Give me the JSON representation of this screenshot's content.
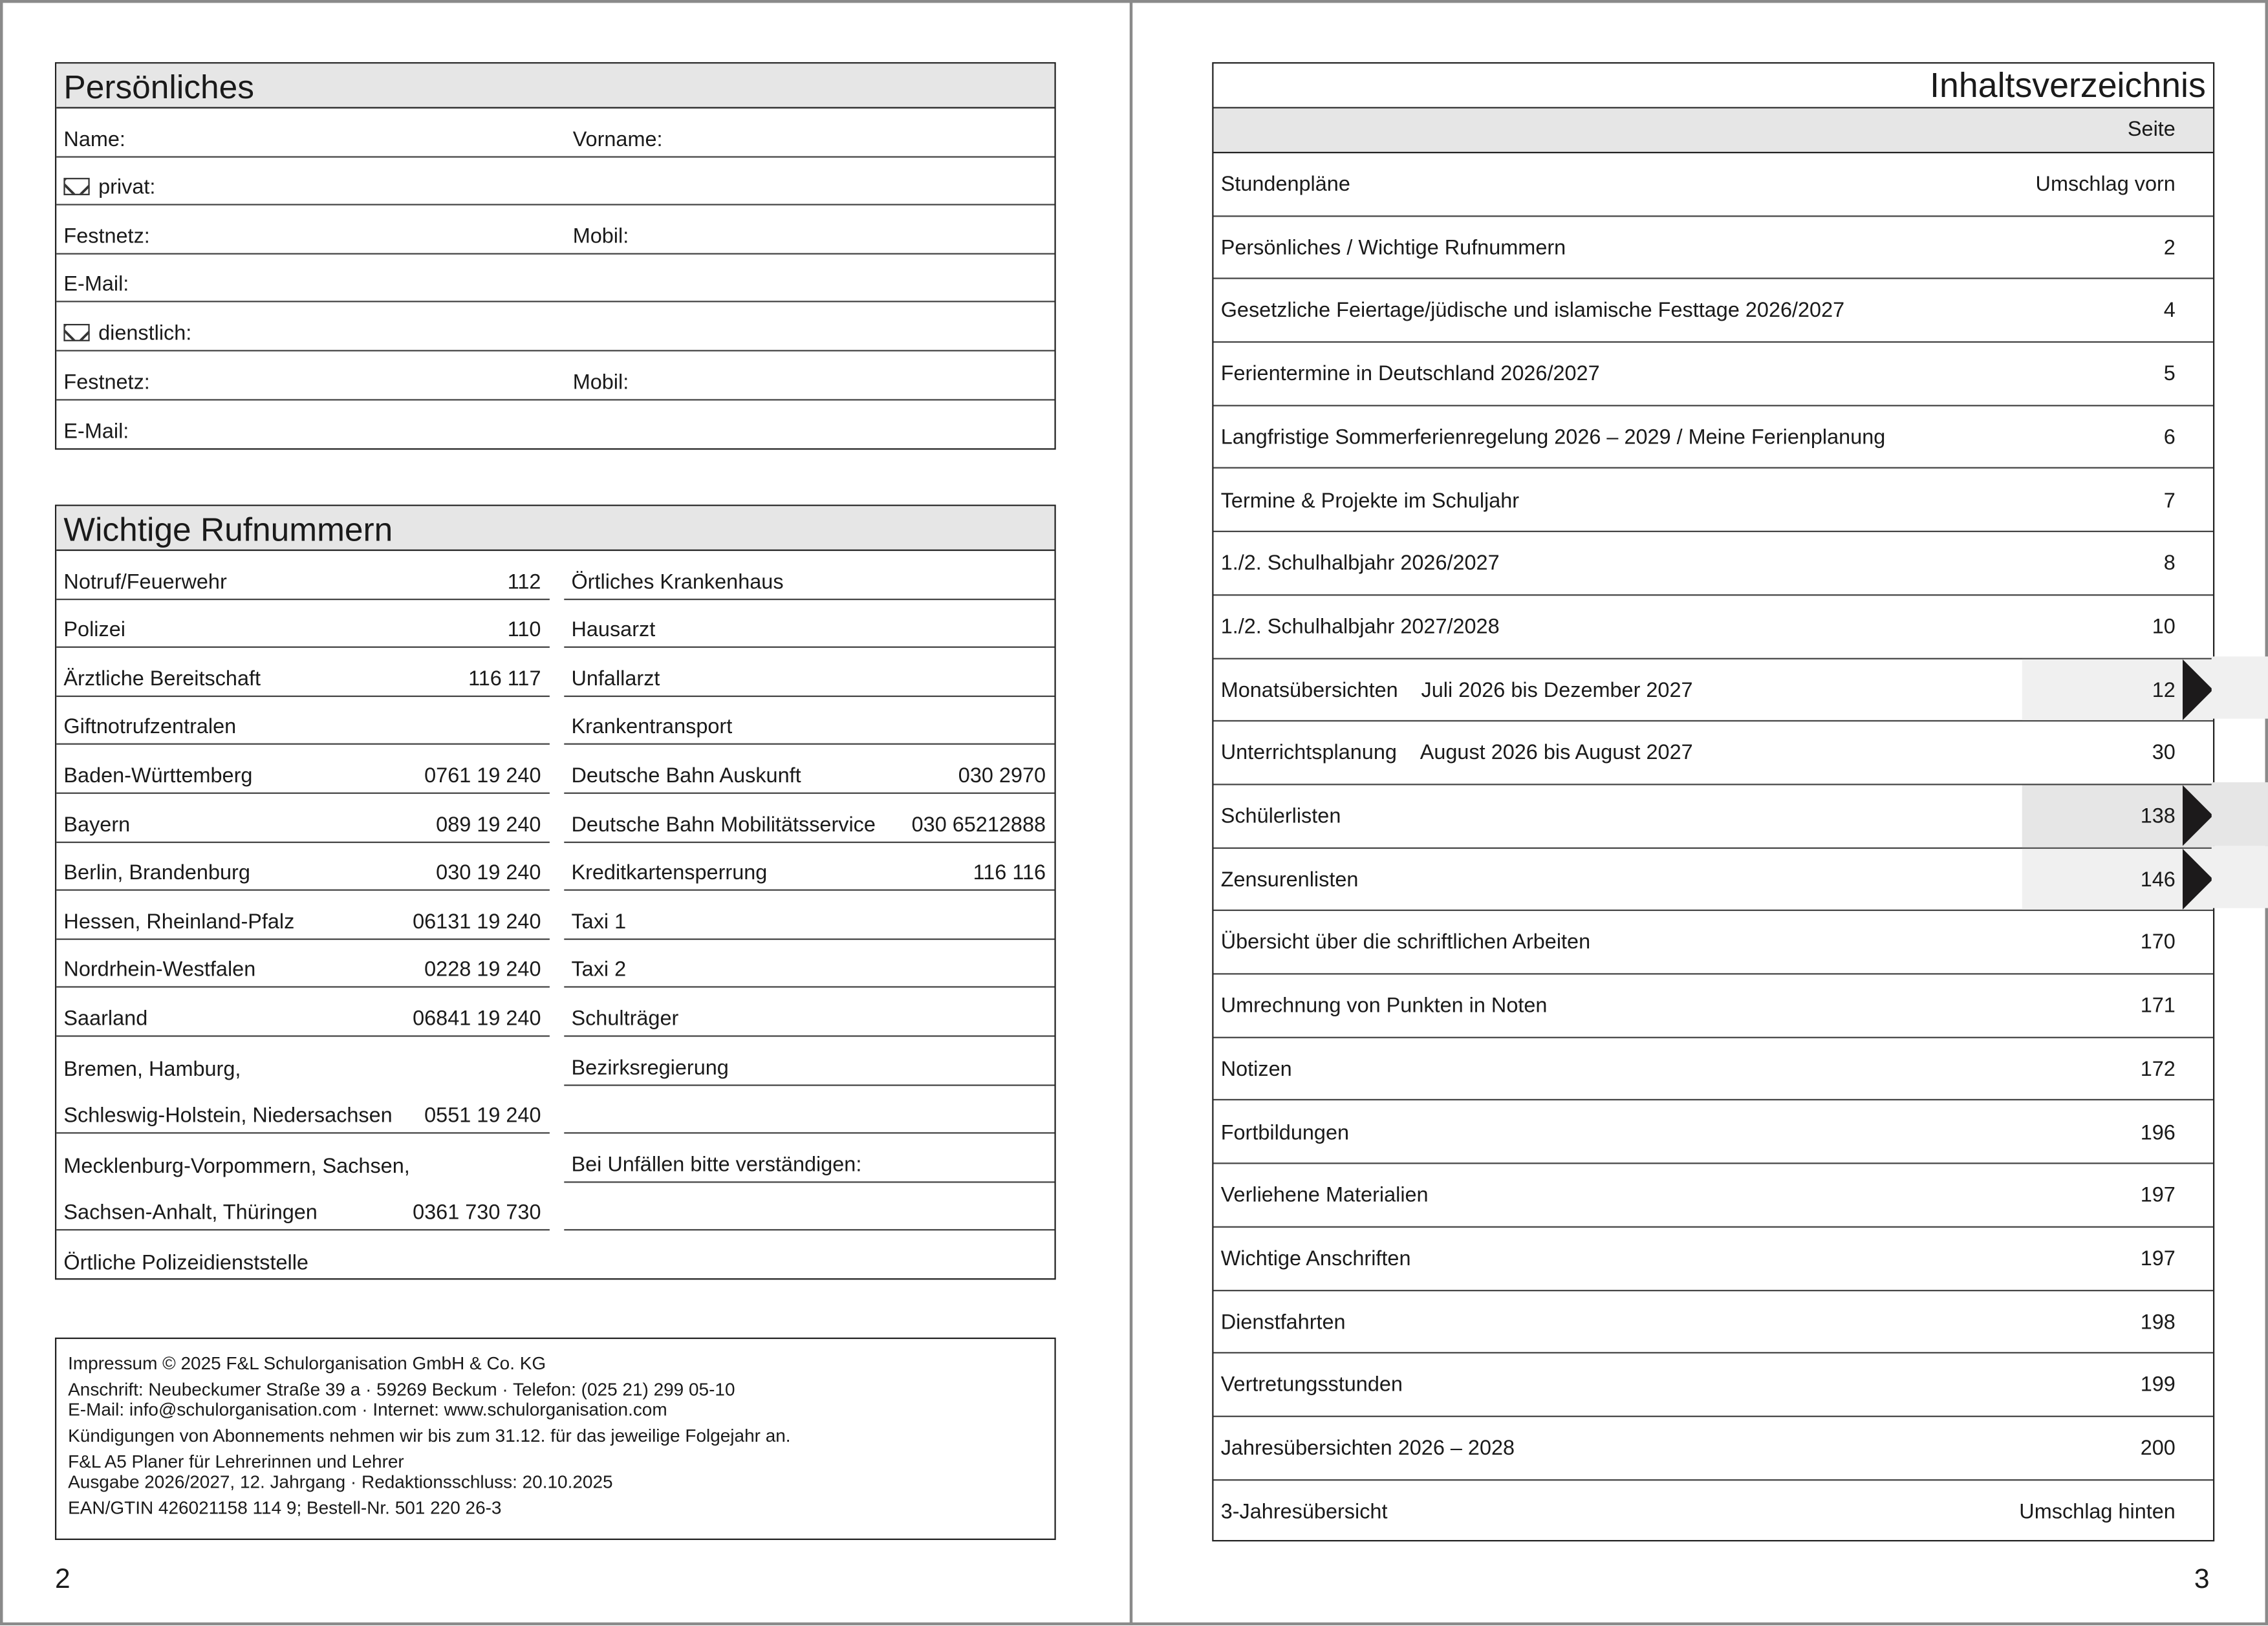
{
  "left_page": {
    "page_number": "2",
    "personal": {
      "title": "Persönliches",
      "rows": [
        {
          "left": "Name:",
          "right": "Vorname:"
        },
        {
          "left": "privat:",
          "icon": "envelope-icon"
        },
        {
          "left": "Festnetz:",
          "right": "Mobil:"
        },
        {
          "left": "E-Mail:"
        },
        {
          "left": "dienstlich:",
          "icon": "envelope-icon"
        },
        {
          "left": "Festnetz:",
          "right": "Mobil:"
        },
        {
          "left": "E-Mail:"
        }
      ]
    },
    "phones": {
      "title": "Wichtige Rufnummern",
      "left": [
        {
          "label": "Notruf/Feuerwehr",
          "number": "112"
        },
        {
          "label": "Polizei",
          "number": "110"
        },
        {
          "label": "Ärztliche Bereitschaft",
          "number": "116 117"
        },
        {
          "label": "Giftnotrufzentralen",
          "number": ""
        },
        {
          "label": "Baden-Württemberg",
          "number": "0761 19 240"
        },
        {
          "label": "Bayern",
          "number": "089 19 240"
        },
        {
          "label": "Berlin, Brandenburg",
          "number": "030 19 240"
        },
        {
          "label": "Hessen, Rheinland-Pfalz",
          "number": "06131 19 240"
        },
        {
          "label": "Nordrhein-Westfalen",
          "number": "0228 19 240"
        },
        {
          "label": "Saarland",
          "number": "06841 19 240"
        },
        {
          "label": "Bremen, Hamburg,",
          "number": ""
        },
        {
          "label": "Schleswig-Holstein, Niedersachsen",
          "number": "0551 19 240"
        },
        {
          "label": "Mecklenburg-Vorpommern, Sachsen,",
          "number": ""
        },
        {
          "label": "Sachsen-Anhalt, Thüringen",
          "number": "0361 730 730"
        },
        {
          "label": "Örtliche Polizeidienststelle",
          "number": ""
        }
      ],
      "right": [
        {
          "label": "Örtliches Krankenhaus",
          "number": ""
        },
        {
          "label": "Hausarzt",
          "number": ""
        },
        {
          "label": "Unfallarzt",
          "number": ""
        },
        {
          "label": "Krankentransport",
          "number": ""
        },
        {
          "label": "Deutsche Bahn Auskunft",
          "number": "030 2970"
        },
        {
          "label": "Deutsche Bahn Mobilitätsservice",
          "number": "030 65212888"
        },
        {
          "label": "Kreditkartensperrung",
          "number": "116 116"
        },
        {
          "label": "Taxi 1",
          "number": ""
        },
        {
          "label": "Taxi 2",
          "number": ""
        },
        {
          "label": "Schulträger",
          "number": ""
        },
        {
          "label": "Bezirksregierung",
          "number": ""
        },
        {
          "label": "",
          "number": ""
        },
        {
          "label": "Bei Unfällen bitte verständigen:",
          "number": ""
        },
        {
          "label": "",
          "number": ""
        },
        {
          "label": "",
          "number": ""
        }
      ]
    },
    "impressum": [
      "Impressum © 2025 F&L Schulorganisation GmbH & Co. KG",
      "Anschrift: Neubeckumer Straße 39 a  ·  59269 Beckum  ·  Telefon: (025 21) 299 05-10",
      "E-Mail: info@schulorganisation.com  ·  Internet: www.schulorganisation.com",
      "Kündigungen von Abonnements nehmen wir bis zum 31.12. für das jeweilige Folgejahr an.",
      "F&L A5 Planer für Lehrerinnen und Lehrer",
      "Ausgabe 2026/2027, 12. Jahrgang  ·  Redaktionsschluss: 20.10.2025",
      "EAN/GTIN 426021158 114 9; Bestell-Nr. 501 220 26-3"
    ]
  },
  "right_page": {
    "page_number": "3",
    "title": "Inhaltsverzeichnis",
    "page_column_label": "Seite",
    "tab_colors": {
      "tab_light": "#f0f0f0",
      "tab_dark": "#e6e6e6",
      "marker": "#1c1a1b"
    },
    "entries": [
      {
        "label": "Stundenpläne",
        "page": "Umschlag vorn"
      },
      {
        "label": "Persönliches / Wichtige Rufnummern",
        "page": "2"
      },
      {
        "label": "Gesetzliche Feiertage/jüdische und islamische Festtage 2026/2027",
        "page": "4"
      },
      {
        "label": "Ferientermine in Deutschland 2026/2027",
        "page": "5"
      },
      {
        "label": "Langfristige Sommerferienregelung 2026 – 2029 / Meine Ferienplanung",
        "page": "6"
      },
      {
        "label": "Termine & Projekte im Schuljahr",
        "page": "7"
      },
      {
        "label": "1./2. Schulhalbjahr 2026/2027",
        "page": "8"
      },
      {
        "label": "1./2. Schulhalbjahr 2027/2028",
        "page": "10"
      },
      {
        "label": "Monatsübersichten",
        "sub": "Juli 2026 bis Dezember 2027",
        "page": "12",
        "tab": "light"
      },
      {
        "label": "Unterrichtsplanung",
        "sub": "August 2026 bis August 2027",
        "page": "30"
      },
      {
        "label": "Schülerlisten",
        "page": "138",
        "tab": "dark"
      },
      {
        "label": "Zensurenlisten",
        "page": "146",
        "tab": "light"
      },
      {
        "label": "Übersicht über die schriftlichen Arbeiten",
        "page": "170"
      },
      {
        "label": "Umrechnung von Punkten in Noten",
        "page": "171"
      },
      {
        "label": "Notizen",
        "page": "172"
      },
      {
        "label": "Fortbildungen",
        "page": "196"
      },
      {
        "label": "Verliehene Materialien",
        "page": "197"
      },
      {
        "label": "Wichtige Anschriften",
        "page": "197"
      },
      {
        "label": "Dienstfahrten",
        "page": "198"
      },
      {
        "label": "Vertretungsstunden",
        "page": "199"
      },
      {
        "label": "Jahresübersichten 2026 – 2028",
        "page": "200"
      },
      {
        "label": "3-Jahresübersicht",
        "page": "Umschlag hinten"
      }
    ]
  }
}
